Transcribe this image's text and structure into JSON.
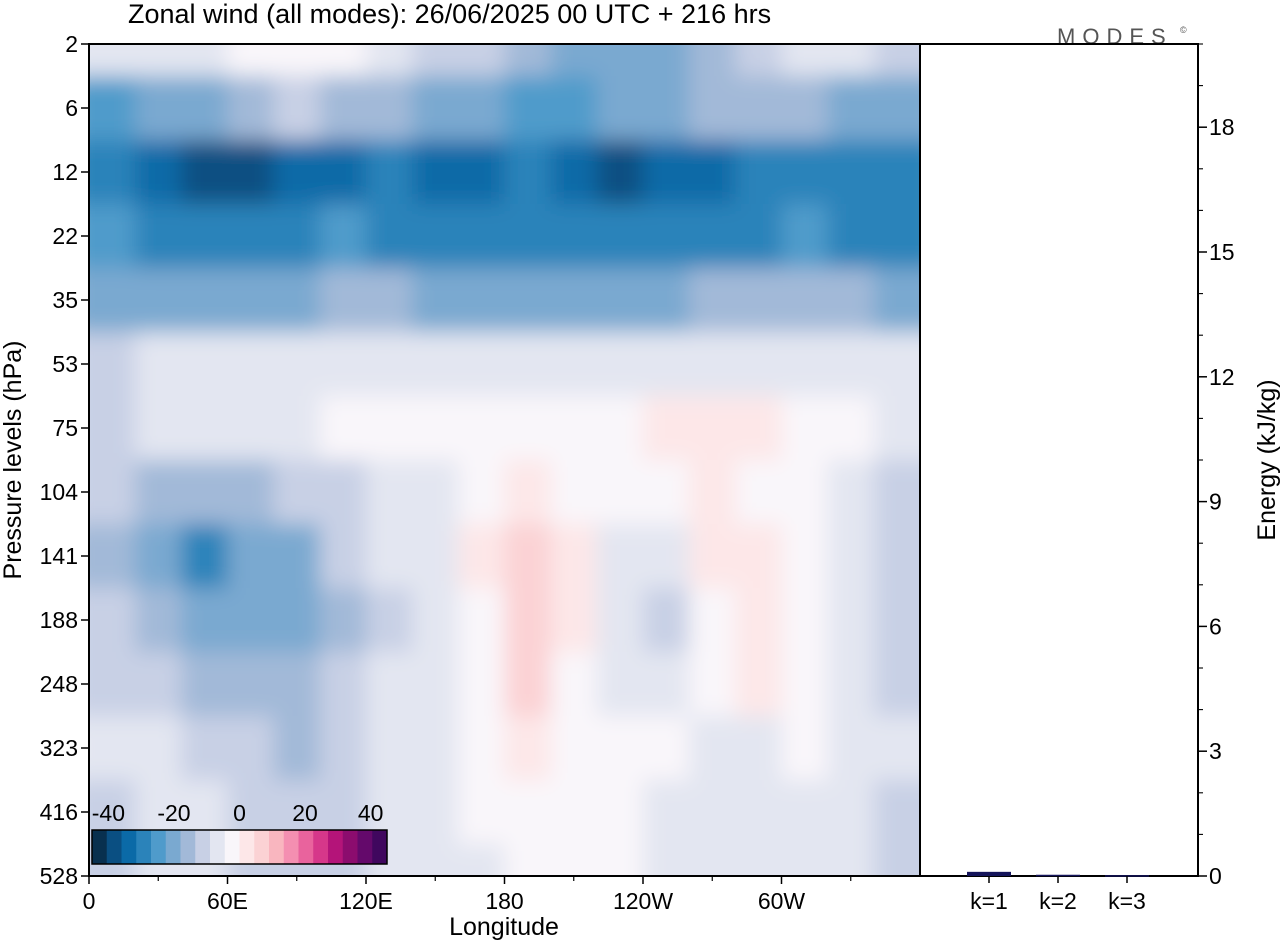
{
  "chart_data": [
    {
      "type": "heatmap",
      "title": "Zonal wind (all modes):  26/06/2025  00 UTC  + 216 hrs",
      "xlabel": "Longitude",
      "ylabel": "Pressure levels (hPa)",
      "x_ticks": [
        "0",
        "60E",
        "120E",
        "180",
        "120W",
        "60W"
      ],
      "y_ticks": [
        "2",
        "6",
        "12",
        "22",
        "35",
        "53",
        "75",
        "104",
        "141",
        "188",
        "248",
        "323",
        "416",
        "528"
      ],
      "colorbar": {
        "ticks": [
          "-40",
          "-20",
          "0",
          "20",
          "40"
        ],
        "range": [
          -45,
          45
        ],
        "step": 5,
        "colors": [
          "#08304f",
          "#0a4f82",
          "#0b6aa7",
          "#2b83ba",
          "#4f9bcb",
          "#7aa9d0",
          "#a2b9d8",
          "#c8d0e5",
          "#e3e6f1",
          "#f9f6fa",
          "#fde7e8",
          "#fbd2d4",
          "#f9b6bf",
          "#f48fb1",
          "#e9639d",
          "#d6378a",
          "#b41479",
          "#8c0c6e",
          "#64096b",
          "#40075e"
        ]
      },
      "x_range_deg": [
        0,
        360
      ],
      "rows": [
        {
          "p": "2",
          "u": [
            -4,
            -3,
            -1,
            2,
            4,
            1,
            -2,
            -6,
            -9,
            -13,
            -16,
            -19,
            -20,
            -15,
            -10,
            -5,
            -3,
            -6
          ]
        },
        {
          "p": "6",
          "u": [
            -22,
            -20,
            -17,
            -12,
            -10,
            -12,
            -14,
            -16,
            -18,
            -21,
            -22,
            -20,
            -18,
            -15,
            -13,
            -14,
            -16,
            -18
          ]
        },
        {
          "p": "12",
          "u": [
            -30,
            -33,
            -38,
            -36,
            -32,
            -31,
            -30,
            -31,
            -33,
            -30,
            -33,
            -37,
            -35,
            -33,
            -30,
            -29,
            -30,
            -30
          ]
        },
        {
          "p": "22",
          "u": [
            -25,
            -27,
            -28,
            -30,
            -27,
            -25,
            -26,
            -27,
            -28,
            -26,
            -27,
            -28,
            -28,
            -27,
            -26,
            -25,
            -27,
            -30
          ]
        },
        {
          "p": "35",
          "u": [
            -18,
            -17,
            -17,
            -18,
            -16,
            -15,
            -15,
            -16,
            -17,
            -16,
            -16,
            -16,
            -16,
            -15,
            -15,
            -14,
            -15,
            -17
          ]
        },
        {
          "p": "53",
          "u": [
            -6,
            -5,
            -4,
            -4,
            -3,
            -3,
            -3,
            -2,
            -2,
            -2,
            -2,
            -2,
            -3,
            -3,
            -3,
            -3,
            -3,
            -4
          ]
        },
        {
          "p": "75",
          "u": [
            -7,
            -4,
            -3,
            -2,
            -1,
            0,
            0,
            2,
            3,
            2,
            1,
            3,
            6,
            8,
            8,
            4,
            0,
            -3
          ]
        },
        {
          "p": "104",
          "u": [
            -10,
            -13,
            -15,
            -12,
            -8,
            -6,
            -4,
            -2,
            2,
            6,
            4,
            0,
            2,
            6,
            4,
            0,
            -4,
            -10
          ]
        },
        {
          "p": "141",
          "u": [
            -12,
            -20,
            -28,
            -20,
            -18,
            -10,
            -5,
            -4,
            5,
            12,
            6,
            -3,
            -3,
            6,
            9,
            4,
            -4,
            -10
          ]
        },
        {
          "p": "188",
          "u": [
            -10,
            -14,
            -20,
            -18,
            -16,
            -12,
            -6,
            -3,
            4,
            13,
            6,
            -4,
            -6,
            4,
            8,
            3,
            -3,
            -8
          ]
        },
        {
          "p": "248",
          "u": [
            -6,
            -8,
            -12,
            -14,
            -15,
            -10,
            -5,
            -3,
            3,
            10,
            4,
            -2,
            -3,
            3,
            5,
            2,
            -3,
            -6
          ]
        },
        {
          "p": "323",
          "u": [
            -5,
            -4,
            -9,
            -10,
            -13,
            -10,
            -4,
            -3,
            2,
            6,
            2,
            1,
            1,
            -2,
            -2,
            0,
            -3,
            -5
          ]
        },
        {
          "p": "416",
          "u": [
            -6,
            -4,
            -3,
            -6,
            -8,
            -8,
            -4,
            -3,
            0,
            3,
            2,
            1,
            -1,
            -3,
            -3,
            -2,
            -4,
            -6
          ]
        },
        {
          "p": "528",
          "u": [
            -7,
            -5,
            -4,
            -6,
            -8,
            -9,
            -5,
            -4,
            -2,
            0,
            1,
            0,
            -2,
            -4,
            -4,
            -3,
            -5,
            -7
          ]
        }
      ]
    },
    {
      "type": "bar",
      "categories": [
        "k=1",
        "k=2",
        "k=3"
      ],
      "values": [
        0.1,
        0.03,
        0.02
      ],
      "ylabel": "Energy (kJ/kg)",
      "ylim": [
        0,
        20
      ],
      "y_ticks": [
        0,
        3,
        6,
        9,
        12,
        15,
        18
      ],
      "bar_color": "#14145a"
    }
  ],
  "logo": {
    "text": "MODES",
    "mark": "©"
  }
}
